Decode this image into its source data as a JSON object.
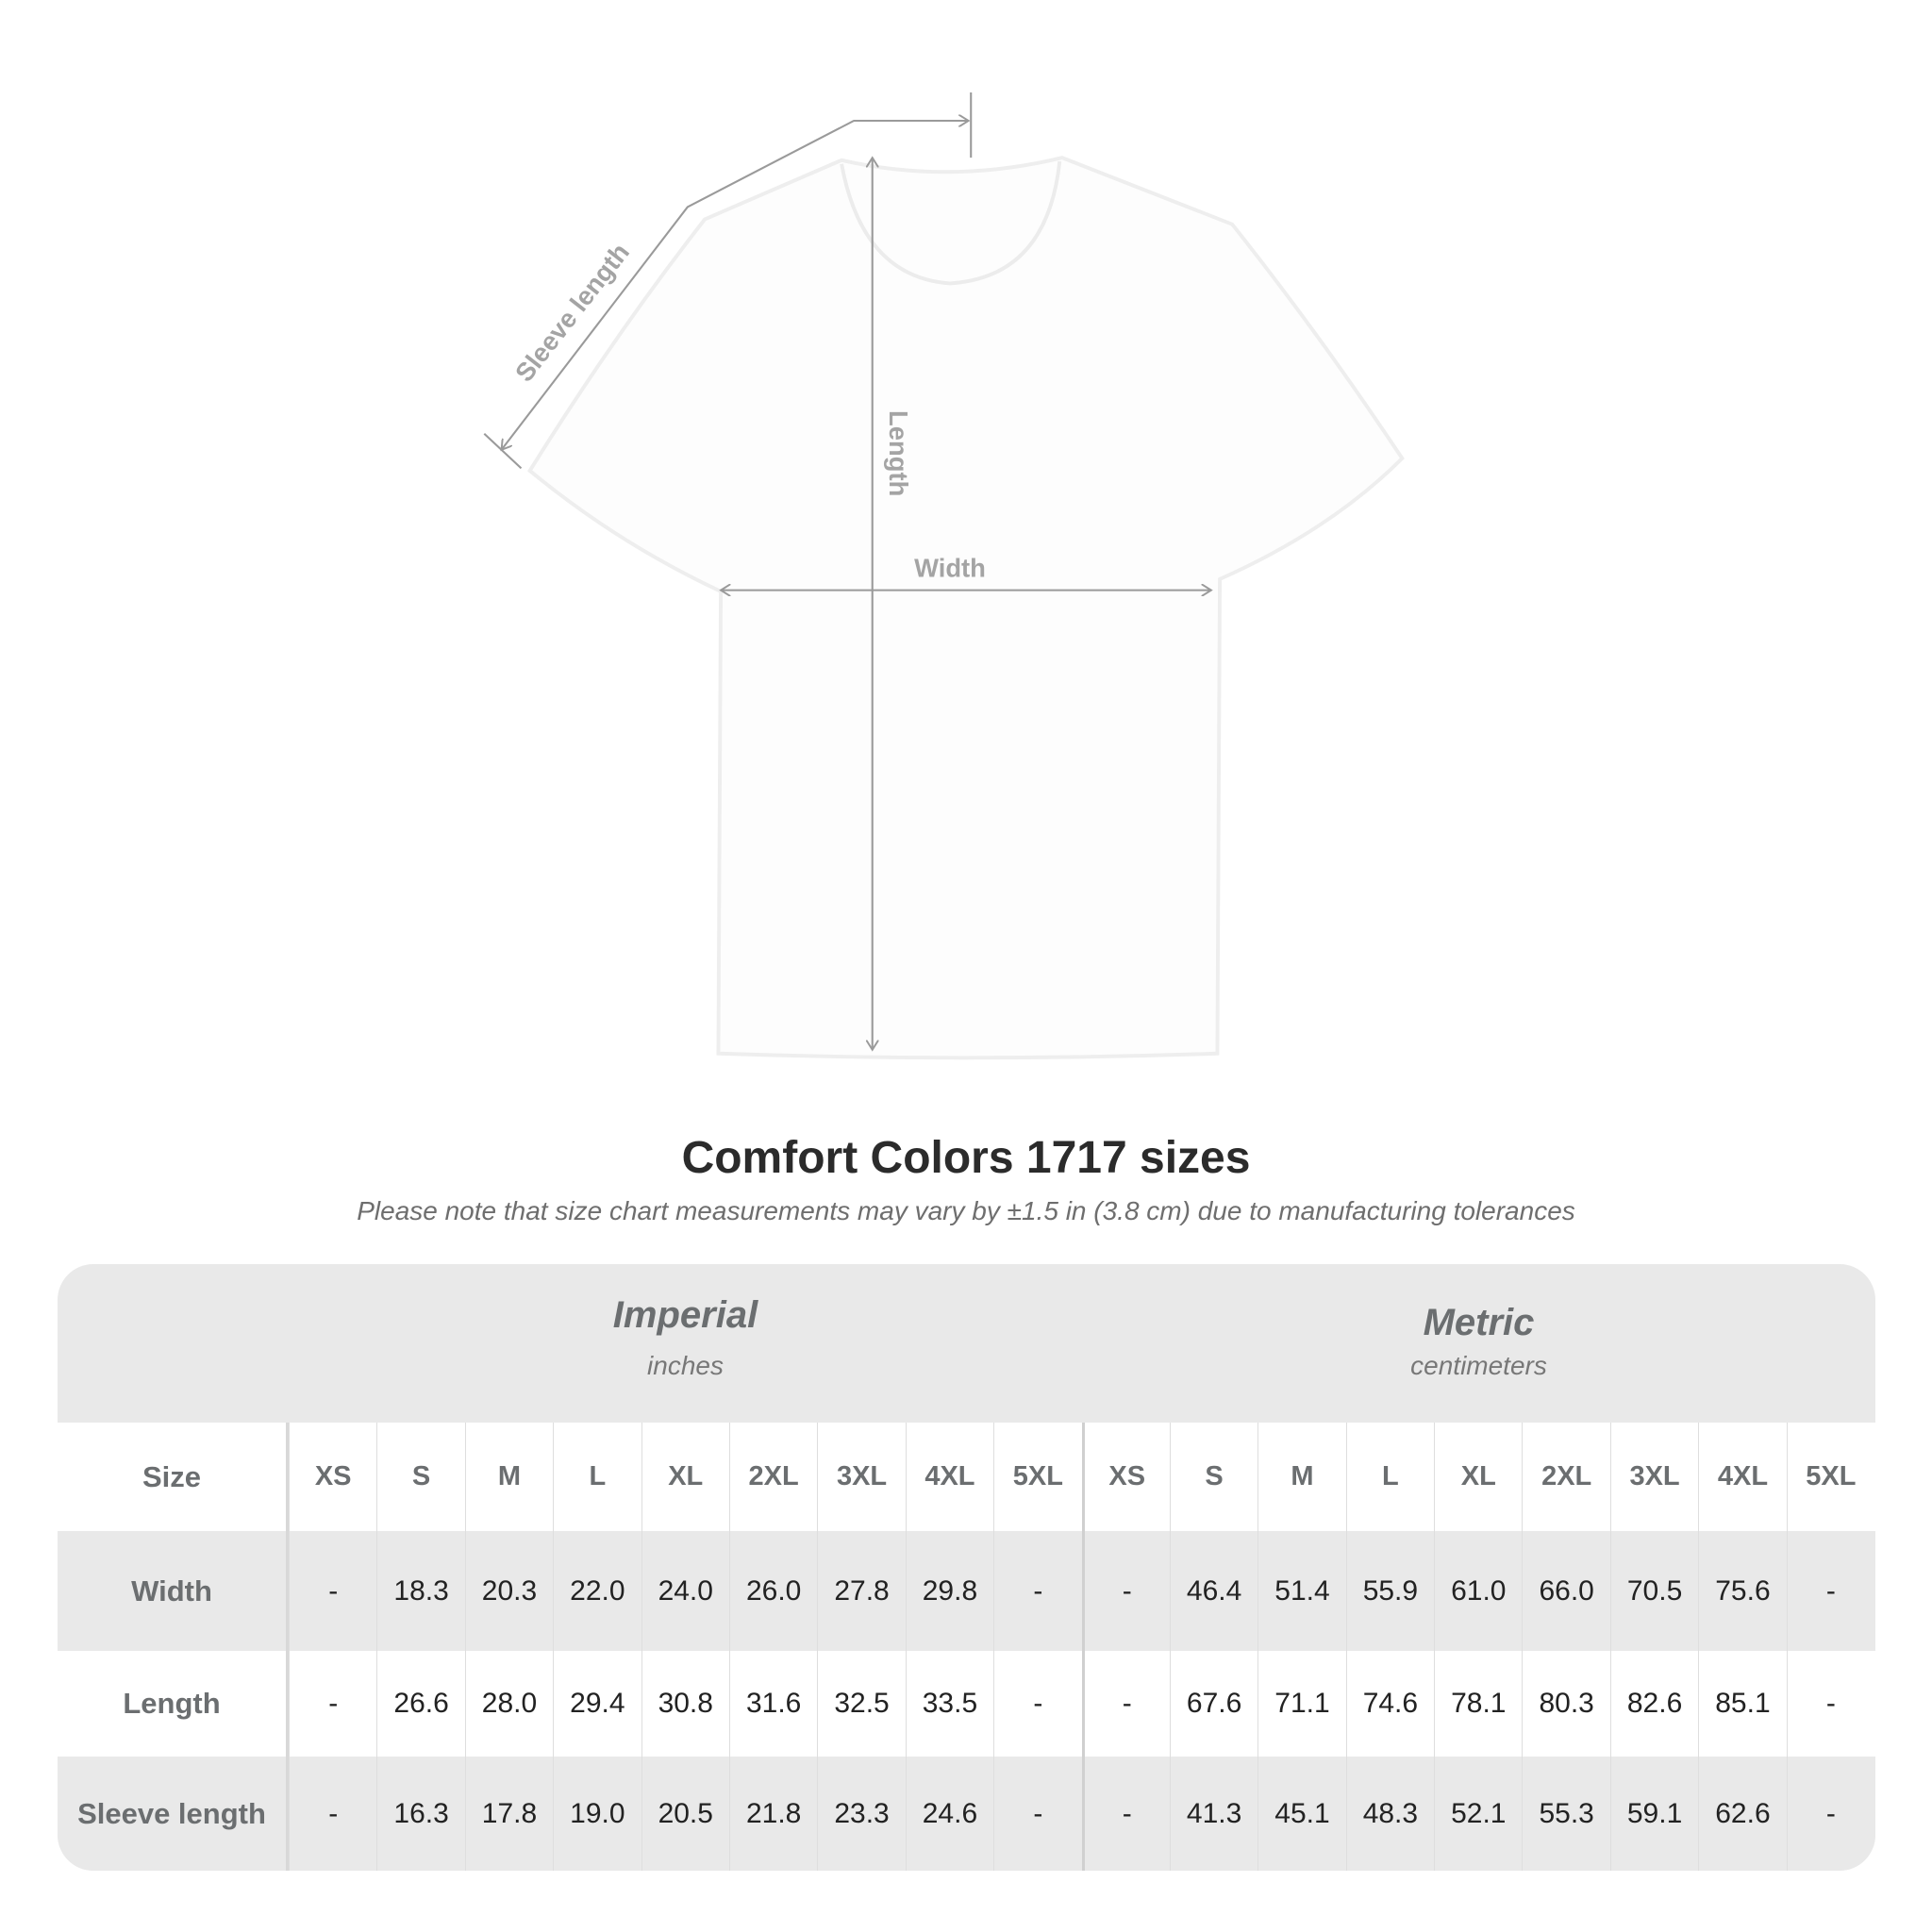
{
  "diagram": {
    "labels": {
      "sleeve": "Sleeve length",
      "length": "Length",
      "width": "Width"
    },
    "shirt_color": "#ffffff",
    "line_color": "#9a9a9a"
  },
  "title": "Comfort Colors 1717 sizes",
  "subtitle": "Please note that size chart measurements may vary by ±1.5 in (3.8 cm) due to manufacturing tolerances",
  "table": {
    "imperial": {
      "label": "Imperial",
      "unit": "inches"
    },
    "metric": {
      "label": "Metric",
      "unit": "centimeters"
    },
    "size_label": "Size",
    "sizes": [
      "XS",
      "S",
      "M",
      "L",
      "XL",
      "2XL",
      "3XL",
      "4XL",
      "5XL"
    ],
    "rows": [
      {
        "label": "Width",
        "imperial": [
          "-",
          "18.3",
          "20.3",
          "22.0",
          "24.0",
          "26.0",
          "27.8",
          "29.8",
          "-"
        ],
        "metric": [
          "-",
          "46.4",
          "51.4",
          "55.9",
          "61.0",
          "66.0",
          "70.5",
          "75.6",
          "-"
        ]
      },
      {
        "label": "Length",
        "imperial": [
          "-",
          "26.6",
          "28.0",
          "29.4",
          "30.8",
          "31.6",
          "32.5",
          "33.5",
          "-"
        ],
        "metric": [
          "-",
          "67.6",
          "71.1",
          "74.6",
          "78.1",
          "80.3",
          "82.6",
          "85.1",
          "-"
        ]
      },
      {
        "label": "Sleeve length",
        "imperial": [
          "-",
          "16.3",
          "17.8",
          "19.0",
          "20.5",
          "21.8",
          "23.3",
          "24.6",
          "-"
        ],
        "metric": [
          "-",
          "41.3",
          "45.1",
          "48.3",
          "52.1",
          "55.3",
          "59.1",
          "62.6",
          "-"
        ]
      }
    ]
  }
}
